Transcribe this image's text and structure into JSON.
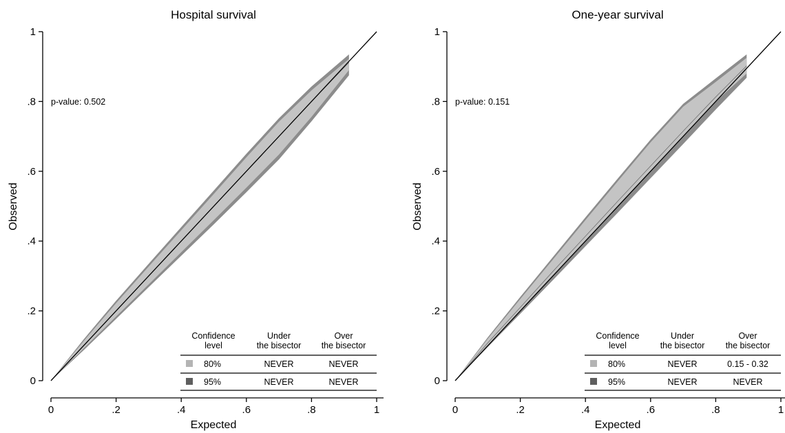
{
  "chart_data": [
    {
      "type": "line",
      "title": "Hospital survival",
      "xlabel": "Expected",
      "ylabel": "Observed",
      "xlim": [
        0,
        1
      ],
      "ylim": [
        0,
        1
      ],
      "xticks": [
        "0",
        ".2",
        ".4",
        ".6",
        ".8",
        "1"
      ],
      "yticks": [
        "0",
        ".2",
        ".4",
        ".6",
        ".8",
        "1"
      ],
      "annotation": "p-value: 0.502",
      "bisector": {
        "x": [
          0,
          1
        ],
        "y": [
          0,
          1
        ]
      },
      "calibration_curve": {
        "x": [
          0,
          0.1,
          0.2,
          0.3,
          0.4,
          0.5,
          0.6,
          0.7,
          0.8,
          0.915
        ],
        "y": [
          0,
          0.1,
          0.2,
          0.3,
          0.4,
          0.5,
          0.6,
          0.7,
          0.8,
          0.912
        ]
      },
      "band_80": {
        "x": [
          0,
          0.1,
          0.2,
          0.3,
          0.4,
          0.5,
          0.6,
          0.7,
          0.8,
          0.915
        ],
        "upper": [
          0,
          0.113,
          0.222,
          0.327,
          0.431,
          0.535,
          0.64,
          0.742,
          0.832,
          0.922
        ],
        "lower": [
          0,
          0.092,
          0.184,
          0.276,
          0.368,
          0.46,
          0.553,
          0.648,
          0.756,
          0.89
        ]
      },
      "band_95": {
        "x": [
          0,
          0.1,
          0.2,
          0.3,
          0.4,
          0.5,
          0.6,
          0.7,
          0.8,
          0.915
        ],
        "upper": [
          0,
          0.118,
          0.229,
          0.335,
          0.44,
          0.545,
          0.65,
          0.752,
          0.843,
          0.935
        ],
        "lower": [
          0,
          0.087,
          0.177,
          0.268,
          0.358,
          0.448,
          0.54,
          0.634,
          0.743,
          0.875
        ]
      },
      "table": {
        "headers": [
          [
            "Confidence",
            "level"
          ],
          [
            "Under",
            "the bisector"
          ],
          [
            "Over",
            "the bisector"
          ]
        ],
        "rows": [
          {
            "level": "80%",
            "under": "NEVER",
            "over": "NEVER",
            "color": "#b4b4b4"
          },
          {
            "level": "95%",
            "under": "NEVER",
            "over": "NEVER",
            "color": "#5e5e5e"
          }
        ]
      }
    },
    {
      "type": "line",
      "title": "One-year survival",
      "xlabel": "Expected",
      "ylabel": "Observed",
      "xlim": [
        0,
        1
      ],
      "ylim": [
        0,
        1
      ],
      "xticks": [
        "0",
        ".2",
        ".4",
        ".6",
        ".8",
        "1"
      ],
      "yticks": [
        "0",
        ".2",
        ".4",
        ".6",
        ".8",
        "1"
      ],
      "annotation": "p-value: 0.151",
      "bisector": {
        "x": [
          0,
          1
        ],
        "y": [
          0,
          1
        ]
      },
      "calibration_curve": {
        "x": [
          0,
          0.1,
          0.2,
          0.3,
          0.4,
          0.5,
          0.6,
          0.7,
          0.8,
          0.895
        ],
        "y": [
          0,
          0.108,
          0.21,
          0.313,
          0.414,
          0.515,
          0.615,
          0.715,
          0.813,
          0.902
        ]
      },
      "band_80": {
        "x": [
          0,
          0.1,
          0.2,
          0.3,
          0.4,
          0.5,
          0.6,
          0.7,
          0.8,
          0.895
        ],
        "upper": [
          0,
          0.12,
          0.234,
          0.347,
          0.46,
          0.572,
          0.683,
          0.785,
          0.856,
          0.925
        ],
        "lower": [
          0,
          0.1,
          0.2,
          0.3,
          0.4,
          0.5,
          0.6,
          0.7,
          0.8,
          0.88
        ]
      },
      "band_95": {
        "x": [
          0,
          0.1,
          0.2,
          0.3,
          0.4,
          0.5,
          0.6,
          0.7,
          0.8,
          0.895
        ],
        "upper": [
          0,
          0.124,
          0.24,
          0.354,
          0.468,
          0.58,
          0.691,
          0.793,
          0.866,
          0.935
        ],
        "lower": [
          0,
          0.096,
          0.192,
          0.288,
          0.385,
          0.482,
          0.58,
          0.678,
          0.777,
          0.868
        ]
      },
      "table": {
        "headers": [
          [
            "Confidence",
            "level"
          ],
          [
            "Under",
            "the bisector"
          ],
          [
            "Over",
            "the bisector"
          ]
        ],
        "rows": [
          {
            "level": "80%",
            "under": "NEVER",
            "over": "0.15 - 0.32",
            "color": "#b4b4b4"
          },
          {
            "level": "95%",
            "under": "NEVER",
            "over": "NEVER",
            "color": "#5e5e5e"
          }
        ]
      }
    }
  ]
}
